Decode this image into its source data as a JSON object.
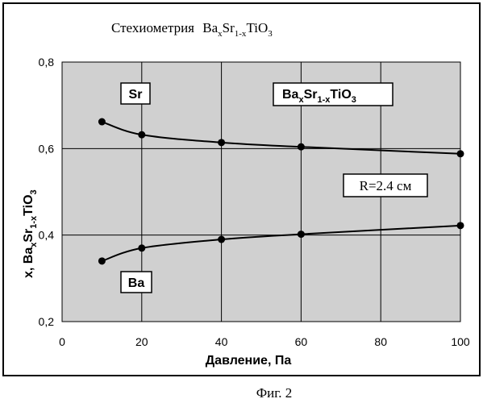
{
  "chart_data": {
    "type": "line",
    "title_main": "Стехиометрия",
    "title_formula": {
      "base1": "Ba",
      "sub1": "x",
      "base2": "Sr",
      "sub2": "1-x",
      "base3": "TiO",
      "sub3": "3"
    },
    "xlabel": "Давление, Па",
    "ylabel": {
      "prefix": "x, ",
      "base1": "Ba",
      "sub1": "x",
      "base2": "Sr",
      "sub2": "1-x",
      "base3": "TiO",
      "sub3": "3"
    },
    "xlim": [
      0,
      100
    ],
    "ylim": [
      0.2,
      0.8
    ],
    "x_ticks": [
      "0",
      "20",
      "40",
      "60",
      "80",
      "100"
    ],
    "y_ticks": [
      "0,2",
      "0,4",
      "0,6",
      "0,8"
    ],
    "grid": true,
    "series": [
      {
        "name": "Sr",
        "x": [
          10,
          20,
          40,
          60,
          100
        ],
        "y": [
          0.662,
          0.632,
          0.614,
          0.604,
          0.588
        ]
      },
      {
        "name": "Ba",
        "x": [
          10,
          20,
          40,
          60,
          100
        ],
        "y": [
          0.34,
          0.37,
          0.39,
          0.402,
          0.422
        ]
      }
    ],
    "annotations": {
      "sr_label": "Sr",
      "ba_label": "Ba",
      "formula_box": {
        "base1": "Ba",
        "sub1": "x",
        "base2": "Sr",
        "sub2": "1-x",
        "base3": "TiO",
        "sub3": "3"
      },
      "radius": "R=2.4 см"
    },
    "caption": "Фиг. 2"
  }
}
